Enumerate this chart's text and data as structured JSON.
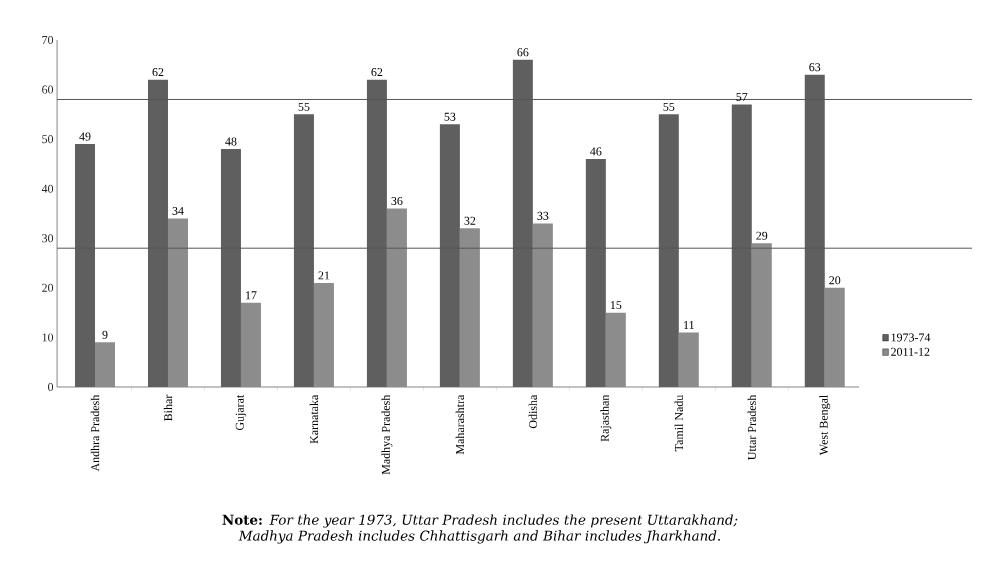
{
  "chart_data": {
    "type": "bar",
    "categories": [
      "Andhra Pradesh",
      "Bihar",
      "Gujarat",
      "Karnataka",
      "Madhya Pradesh",
      "Maharashtra",
      "Odisha",
      "Rajasthan",
      "Tamil Nadu",
      "Uttar Pradesh",
      "West Bengal"
    ],
    "series": [
      {
        "name": "1973-74",
        "color": "#5f5f5f",
        "values": [
          49,
          62,
          48,
          55,
          62,
          53,
          66,
          46,
          55,
          57,
          63
        ]
      },
      {
        "name": "2011-12",
        "color": "#8c8c8c",
        "values": [
          9,
          34,
          17,
          21,
          36,
          32,
          33,
          15,
          11,
          29,
          20
        ]
      }
    ],
    "ylim": [
      0,
      70
    ],
    "yticks": [
      0,
      10,
      20,
      30,
      40,
      50,
      60,
      70
    ],
    "ref_lines": [
      {
        "axis": "y",
        "value": 58,
        "color": "#555555"
      },
      {
        "axis": "y",
        "value": 28,
        "color": "#555555"
      }
    ],
    "data_labels": true,
    "grid": false,
    "legend": "right",
    "annotations": [
      "**Note:** *For the year 1973, Uttar Pradesh includes the present Uttarakhand; Madhya Pradesh includes Chhattisgarh and Bihar includes Jharkhand.*"
    ]
  }
}
